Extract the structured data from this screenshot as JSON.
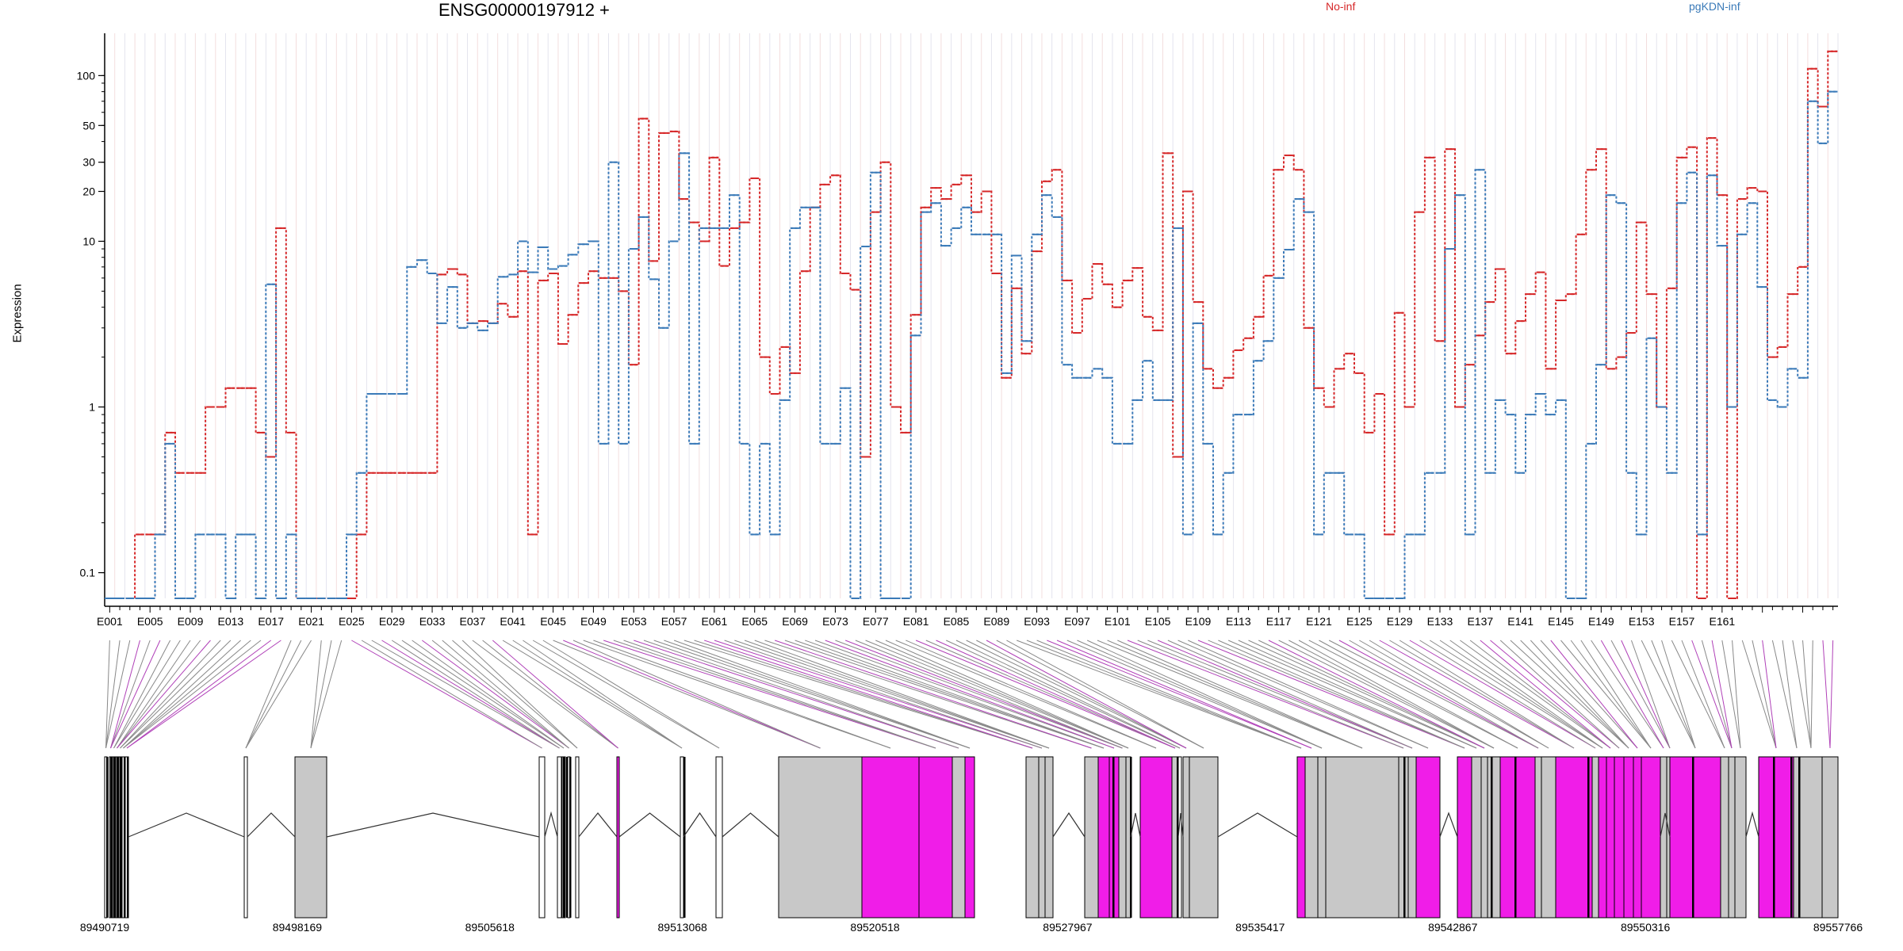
{
  "chart_data": {
    "type": "line",
    "title": "ENSG00000197912 +",
    "ylabel": "Expression",
    "yscale": "log",
    "ylim": [
      0.07,
      180
    ],
    "yticks": [
      0.1,
      1,
      10,
      20,
      30,
      50,
      100
    ],
    "legend": [
      {
        "name": "No-inf",
        "color": "#d62728"
      },
      {
        "name": "pgKDN-inf",
        "color": "#3a7ab8"
      }
    ],
    "series": [
      {
        "name": "No-inf",
        "color": "#d62728",
        "values": [
          0.07,
          0.07,
          0.07,
          0.17,
          0.17,
          0.17,
          0.7,
          0.4,
          0.4,
          0.4,
          1.0,
          1.0,
          1.3,
          1.3,
          1.3,
          0.7,
          0.5,
          12,
          0.7,
          0.07,
          0.07,
          0.07,
          0.07,
          0.07,
          0.07,
          0.17,
          0.4,
          0.4,
          0.4,
          0.4,
          0.4,
          0.4,
          0.4,
          6.3,
          6.8,
          6.3,
          3.2,
          3.3,
          3.2,
          4.2,
          3.5,
          6.6,
          0.17,
          5.8,
          6.4,
          2.4,
          3.6,
          5.6,
          6.6,
          6.0,
          6.0,
          5.0,
          1.8,
          55,
          7.6,
          45,
          46,
          18,
          13,
          10,
          32,
          7.1,
          12,
          13,
          24,
          2.0,
          1.2,
          2.3,
          1.6,
          6.6,
          16,
          22,
          25,
          6.4,
          5.1,
          0.5,
          15,
          30,
          1.0,
          0.7,
          3.6,
          16,
          21,
          18,
          22,
          25,
          15,
          20,
          6.4,
          1.5,
          5.2,
          2.1,
          8.7,
          23,
          27,
          5.8,
          2.8,
          4.5,
          7.3,
          5.5,
          4.0,
          5.8,
          6.9,
          3.5,
          2.9,
          34,
          0.5,
          20,
          4.3,
          1.7,
          1.3,
          1.5,
          2.2,
          2.6,
          3.5,
          6.2,
          27,
          33,
          27,
          3.0,
          1.3,
          1.0,
          1.7,
          2.1,
          1.6,
          0.7,
          1.2,
          0.17,
          3.7,
          1.0,
          15,
          32,
          2.5,
          36,
          1.0,
          1.8,
          2.7,
          4.3,
          6.8,
          2.1,
          3.3,
          4.8,
          6.5,
          1.7,
          4.4,
          4.8,
          11,
          27,
          36,
          1.7,
          2.0,
          2.8,
          13,
          4.8,
          1.0,
          5.2,
          32,
          37,
          0.07,
          42,
          19,
          0.07,
          18,
          21,
          20,
          2.0,
          2.3,
          4.8,
          7.0,
          110,
          65,
          140
        ]
      },
      {
        "name": "pgKDN-inf",
        "color": "#3a7ab8",
        "values": [
          0.07,
          0.07,
          0.07,
          0.07,
          0.07,
          0.17,
          0.6,
          0.07,
          0.07,
          0.17,
          0.17,
          0.17,
          0.07,
          0.17,
          0.17,
          0.07,
          5.5,
          0.07,
          0.17,
          0.07,
          0.07,
          0.07,
          0.07,
          0.07,
          0.17,
          0.4,
          1.2,
          1.2,
          1.2,
          1.2,
          7.0,
          7.7,
          6.4,
          3.2,
          5.3,
          3.0,
          3.2,
          2.9,
          3.2,
          6.1,
          6.3,
          10,
          6.5,
          9.2,
          6.8,
          7.1,
          8.3,
          9.6,
          10,
          0.6,
          30,
          0.6,
          9.0,
          14,
          5.9,
          3.0,
          10,
          34,
          0.6,
          12,
          12,
          12,
          19,
          0.6,
          0.17,
          0.6,
          0.17,
          1.1,
          12,
          16,
          16,
          0.6,
          0.6,
          1.3,
          0.07,
          9.3,
          26,
          0.07,
          0.07,
          0.07,
          2.7,
          15,
          17,
          9.4,
          12,
          16,
          11,
          11,
          11,
          1.6,
          8.2,
          2.5,
          11,
          19,
          14,
          1.8,
          1.5,
          1.5,
          1.7,
          1.5,
          0.6,
          0.6,
          1.1,
          1.9,
          1.1,
          1.1,
          12,
          0.17,
          3.2,
          0.6,
          0.17,
          0.4,
          0.9,
          0.9,
          1.9,
          2.5,
          6.0,
          8.9,
          18,
          15,
          0.17,
          0.4,
          0.4,
          0.17,
          0.17,
          0.07,
          0.07,
          0.07,
          0.07,
          0.17,
          0.17,
          0.4,
          0.4,
          9.0,
          19,
          0.17,
          27,
          0.4,
          1.1,
          0.9,
          0.4,
          0.9,
          1.2,
          0.9,
          1.1,
          0.07,
          0.07,
          0.6,
          1.8,
          19,
          17,
          0.4,
          0.17,
          2.6,
          1.0,
          0.4,
          17,
          26,
          0.17,
          25,
          9.4,
          1.0,
          11,
          17,
          5.3,
          1.1,
          1.0,
          1.7,
          1.5,
          70,
          39,
          80
        ]
      }
    ],
    "exon_tick_labels": [
      "E001",
      "E005",
      "E009",
      "E013",
      "E017",
      "E021",
      "E025",
      "E029",
      "E033",
      "E037",
      "E041",
      "E045",
      "E049",
      "E053",
      "E057",
      "E061",
      "E065",
      "E069",
      "E073",
      "E077",
      "E081",
      "E085",
      "E089",
      "E093",
      "E097",
      "E101",
      "E105",
      "E109",
      "E113",
      "E117",
      "E121",
      "E125",
      "E129",
      "E133",
      "E137",
      "E141",
      "E145",
      "E149",
      "E153",
      "E157",
      "E161"
    ],
    "genomic_axis_labels": [
      "89490719",
      "89498169",
      "89505618",
      "89513068",
      "89520518",
      "89527967",
      "89535417",
      "89542867",
      "89550316",
      "89557766"
    ],
    "genomic_range": [
      89490719,
      89557766
    ]
  },
  "colors": {
    "no_inf": "#d62728",
    "pgkdn_inf": "#3a7ab8",
    "highlight": "#f01de8",
    "exon_gray": "#c8c8c8",
    "connector": "#888888"
  }
}
